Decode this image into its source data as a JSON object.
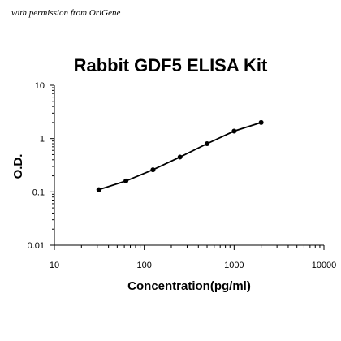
{
  "watermark": "with permission from OriGene",
  "chart_data": {
    "type": "line",
    "title": "Rabbit GDF5 ELISA Kit",
    "xlabel": "Concentration(pg/ml)",
    "ylabel": "O.D.",
    "x_scale": "log",
    "y_scale": "log",
    "xlim": [
      10,
      10000
    ],
    "ylim": [
      0.01,
      10
    ],
    "x_ticks": [
      "10",
      "100",
      "1000",
      "10000"
    ],
    "y_ticks": [
      "10",
      "1",
      "0.1",
      "0.01"
    ],
    "grid": false,
    "series": [
      {
        "color": "#000000",
        "marker": "circle",
        "x": [
          31.25,
          62.5,
          125,
          250,
          500,
          1000,
          2000
        ],
        "y": [
          0.11,
          0.16,
          0.26,
          0.45,
          0.8,
          1.38,
          2.0
        ]
      }
    ]
  }
}
